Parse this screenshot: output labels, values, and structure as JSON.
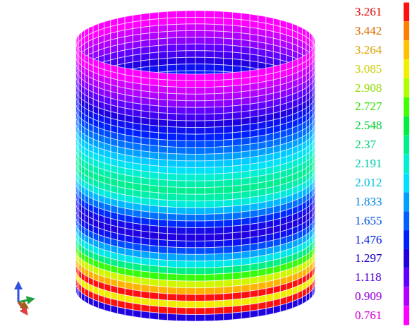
{
  "chart_data": {
    "type": "contour",
    "colorbar": {
      "levels": [
        3.261,
        3.442,
        3.264,
        3.085,
        2.908,
        2.727,
        2.548,
        2.37,
        2.191,
        2.012,
        1.833,
        1.655,
        1.476,
        1.297,
        1.118,
        0.909,
        0.761
      ],
      "colors": [
        "#ff1010",
        "#ff8000",
        "#ffc000",
        "#f0f000",
        "#b0ff00",
        "#40ff00",
        "#00f040",
        "#00f090",
        "#00f0d0",
        "#00e0ff",
        "#00a0ff",
        "#0060ff",
        "#0020ff",
        "#2000e0",
        "#6000ff",
        "#b000ff",
        "#ff00ff"
      ]
    },
    "ring_values": [
      0.761,
      0.761,
      0.85,
      0.909,
      1.0,
      1.118,
      1.2,
      1.297,
      1.4,
      1.476,
      1.6,
      1.7,
      1.833,
      1.95,
      2.05,
      2.191,
      2.3,
      2.37,
      2.3,
      2.15,
      1.9,
      1.7,
      1.5,
      1.35,
      1.297,
      1.4,
      1.6,
      1.85,
      2.1,
      2.4,
      2.7,
      3.0,
      3.3,
      3.55,
      3.1,
      3.55,
      1.3
    ]
  }
}
